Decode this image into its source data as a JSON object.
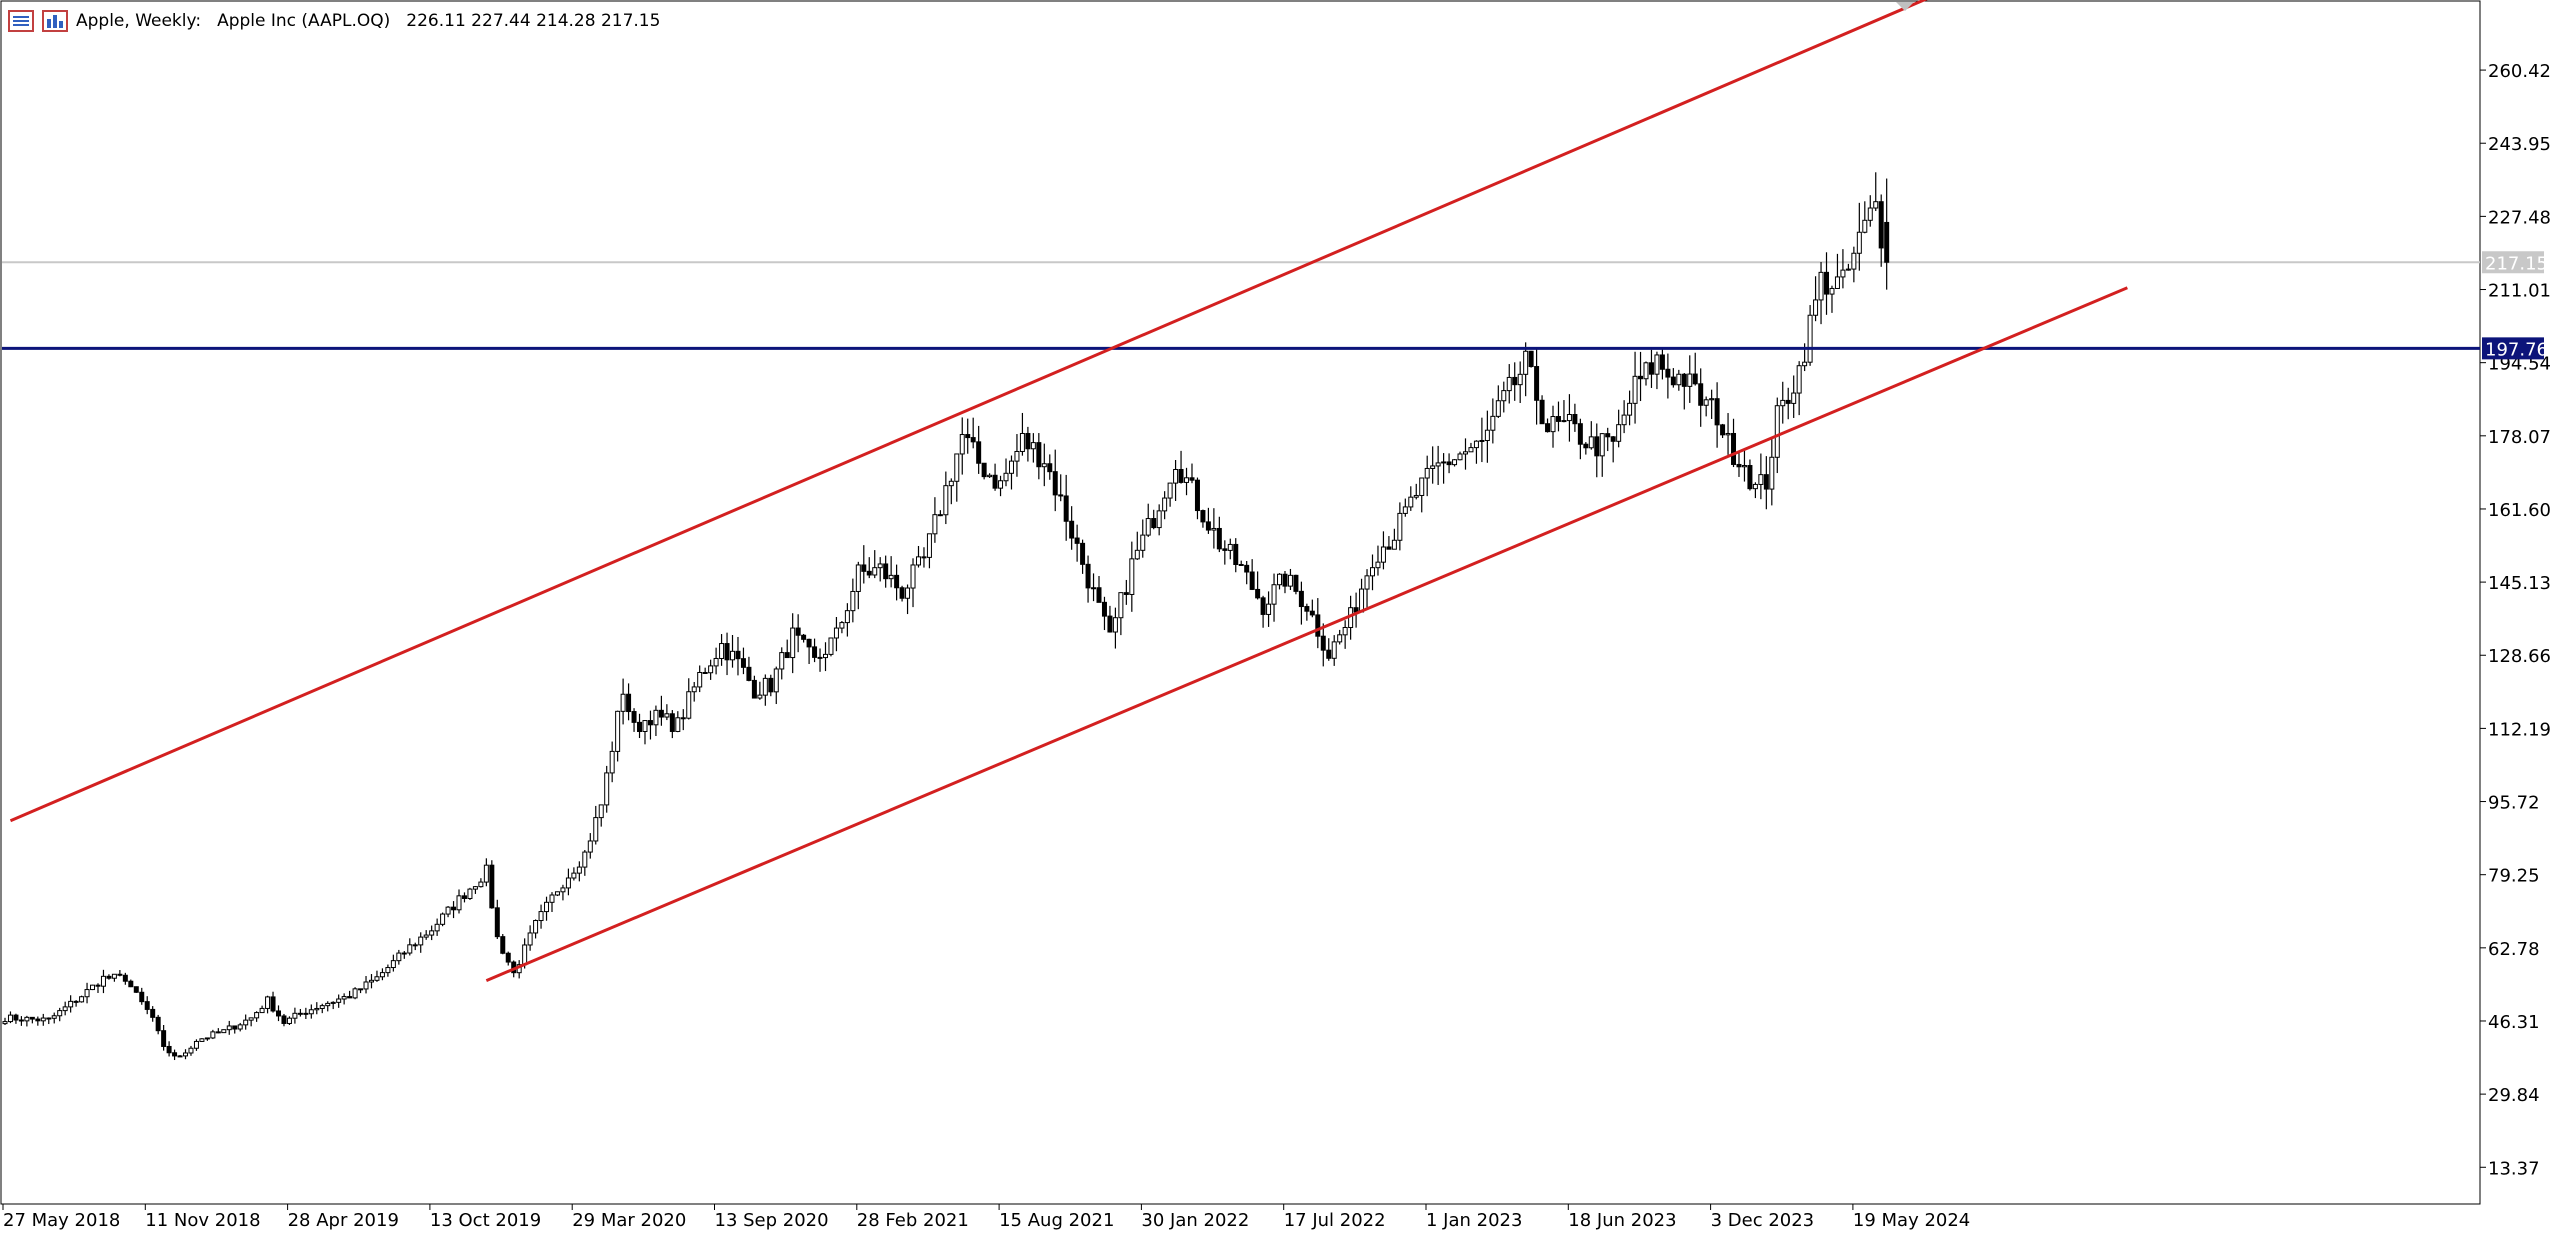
{
  "header": {
    "symbol": "Apple, Weekly:",
    "description": "Apple Inc (AAPL.OQ)",
    "ohlc": "226.11 227.44 214.28 217.15"
  },
  "icons": [
    "chart-menu-icon",
    "chart-type-icon"
  ],
  "colors": {
    "background": "#ffffff",
    "channel_line": "#d32020",
    "horizontal_line": "#0c147a",
    "bull_candle": "#ffffff",
    "bear_candle": "#000000",
    "bid_line": "#c8c8c8"
  },
  "chart_data": {
    "type": "candlestick",
    "title": "Apple, Weekly:",
    "series_name": "Apple Inc (AAPL.OQ)",
    "y_ticks": [
      "260.42",
      "243.95",
      "227.48",
      "211.01",
      "194.54",
      "178.07",
      "161.60",
      "145.13",
      "128.66",
      "112.19",
      "95.72",
      "79.25",
      "62.78",
      "46.31",
      "29.84",
      "13.37"
    ],
    "ylim": [
      5.1,
      276.2
    ],
    "x_ticks": [
      "27 May 2018",
      "11 Nov 2018",
      "28 Apr 2019",
      "13 Oct 2019",
      "29 Mar 2020",
      "13 Sep 2020",
      "28 Feb 2021",
      "15 Aug 2021",
      "30 Jan 2022",
      "17 Jul 2022",
      "1 Jan 2023",
      "18 Jun 2023",
      "3 Dec 2023",
      "19 May 2024"
    ],
    "last_price": "217.15",
    "horizontal_level": "197.76",
    "price_path": [
      [
        0,
        47
      ],
      [
        8,
        46.5
      ],
      [
        14,
        52
      ],
      [
        18,
        56
      ],
      [
        22,
        56
      ],
      [
        24,
        52
      ],
      [
        27,
        47
      ],
      [
        29,
        40
      ],
      [
        32,
        38
      ],
      [
        35,
        42
      ],
      [
        40,
        44
      ],
      [
        45,
        47
      ],
      [
        48,
        51
      ],
      [
        51,
        46
      ],
      [
        54,
        48
      ],
      [
        58,
        50
      ],
      [
        63,
        52
      ],
      [
        68,
        56
      ],
      [
        74,
        63
      ],
      [
        78,
        67
      ],
      [
        84,
        75
      ],
      [
        88,
        80
      ],
      [
        90,
        65
      ],
      [
        93,
        57
      ],
      [
        97,
        68
      ],
      [
        101,
        76
      ],
      [
        106,
        84
      ],
      [
        109,
        95
      ],
      [
        113,
        121
      ],
      [
        115,
        112
      ],
      [
        118,
        115
      ],
      [
        123,
        113
      ],
      [
        127,
        124
      ],
      [
        131,
        131
      ],
      [
        134,
        127
      ],
      [
        137,
        121
      ],
      [
        140,
        122
      ],
      [
        144,
        133
      ],
      [
        148,
        127
      ],
      [
        152,
        133
      ],
      [
        156,
        147
      ],
      [
        160,
        148
      ],
      [
        164,
        143
      ],
      [
        168,
        150
      ],
      [
        172,
        166
      ],
      [
        175,
        178
      ],
      [
        178,
        172
      ],
      [
        182,
        167
      ],
      [
        186,
        177
      ],
      [
        190,
        173
      ],
      [
        194,
        160
      ],
      [
        198,
        146
      ],
      [
        202,
        132
      ],
      [
        206,
        149
      ],
      [
        210,
        160
      ],
      [
        214,
        173
      ],
      [
        218,
        163
      ],
      [
        222,
        154
      ],
      [
        226,
        148
      ],
      [
        230,
        140
      ],
      [
        234,
        146
      ],
      [
        238,
        140
      ],
      [
        242,
        129
      ],
      [
        246,
        137
      ],
      [
        250,
        151
      ],
      [
        254,
        156
      ],
      [
        258,
        165
      ],
      [
        262,
        171
      ],
      [
        266,
        174
      ],
      [
        270,
        176
      ],
      [
        274,
        186
      ],
      [
        278,
        194
      ],
      [
        280,
        187
      ],
      [
        282,
        180
      ],
      [
        286,
        180
      ],
      [
        290,
        176
      ],
      [
        294,
        176
      ],
      [
        298,
        189
      ],
      [
        302,
        195
      ],
      [
        304,
        192
      ],
      [
        307,
        191
      ],
      [
        310,
        186
      ],
      [
        313,
        183
      ],
      [
        315,
        176
      ],
      [
        318,
        172
      ],
      [
        320,
        166
      ],
      [
        322,
        168
      ],
      [
        324,
        182
      ],
      [
        328,
        193
      ],
      [
        332,
        213
      ],
      [
        336,
        212
      ],
      [
        340,
        225
      ],
      [
        342,
        230
      ],
      [
        344,
        217
      ]
    ],
    "channel_upper": [
      [
        1,
        91.4
      ],
      [
        358,
        280
      ]
    ],
    "channel_lower": [
      [
        88,
        55.4
      ],
      [
        388,
        211.4
      ]
    ]
  }
}
